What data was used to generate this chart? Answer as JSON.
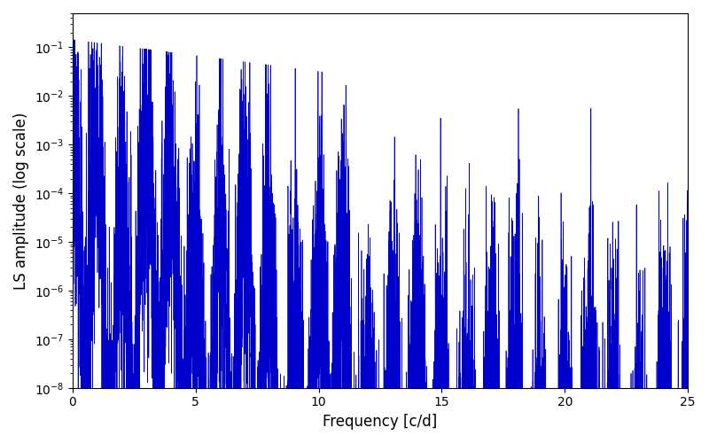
{
  "title": "",
  "xlabel": "Frequency [c/d]",
  "ylabel": "LS amplitude (log scale)",
  "xlim": [
    0,
    25
  ],
  "ylim": [
    1e-08,
    0.5
  ],
  "line_color": "#0000cc",
  "line_width": 0.5,
  "figsize": [
    8.0,
    5.0
  ],
  "dpi": 100,
  "background_color": "#ffffff",
  "freq_max": 25.0,
  "n_points": 8000,
  "seed": 42,
  "peak_value": 0.13,
  "env_decay1": 0.55,
  "env_decay2": 0.07,
  "env_floor": 3e-05,
  "osc_period": 1.0,
  "osc_depth": 6.0,
  "coarse_period": 3.5,
  "coarse_depth": 2.0,
  "noise_sigma": 1.8,
  "null_prob": 0.12,
  "null_depth_min": 5,
  "null_depth_max": 8
}
